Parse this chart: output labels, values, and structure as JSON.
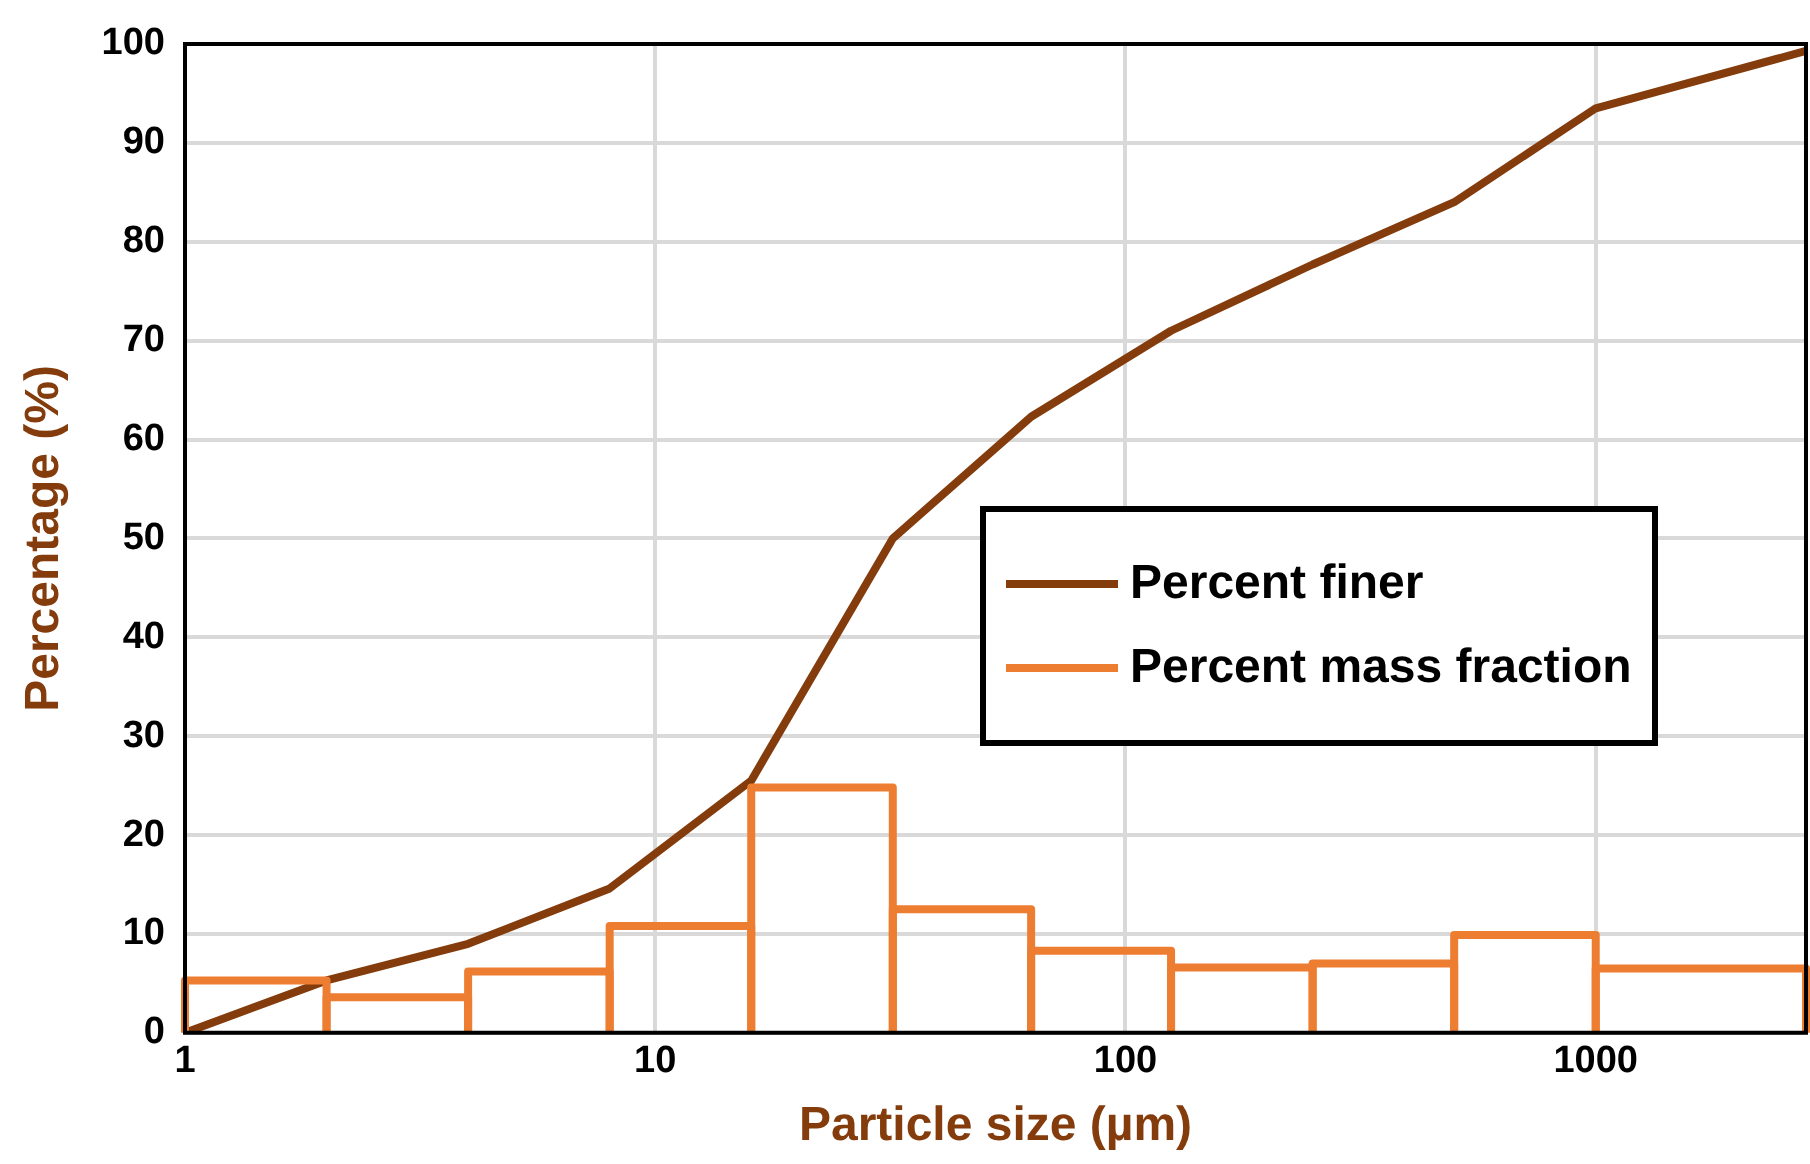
{
  "chart_data": {
    "type": "histogram",
    "xlabel": "Particle size (µm)",
    "ylabel": "Percentage (%)",
    "log": "x",
    "xlim": [
      1,
      2800
    ],
    "xticks": [
      1,
      10,
      100,
      1000
    ],
    "ylim": [
      0,
      100
    ],
    "yticks": [
      0,
      10,
      20,
      30,
      40,
      50,
      60,
      70,
      80,
      90,
      100
    ],
    "grid": true,
    "legend": "right",
    "bins": [
      1,
      2,
      4,
      8,
      16,
      32,
      63,
      125,
      250,
      500,
      1000,
      2800
    ],
    "series": [
      {
        "name": "Percent finer",
        "type": "line",
        "color": "#843c0c",
        "x": [
          1,
          2,
          4,
          8,
          16,
          32,
          63,
          125,
          250,
          500,
          1000,
          2800
        ],
        "values": [
          0,
          5.3,
          9,
          14.6,
          25.5,
          50,
          62.3,
          71,
          77.7,
          84,
          93.5,
          99.3
        ]
      },
      {
        "name": "Percent mass fraction",
        "color": "#ed7d31",
        "values": [
          5.3,
          3.6,
          6.2,
          10.8,
          24.8,
          12.5,
          8.3,
          6.6,
          7.0,
          9.9,
          6.5
        ]
      }
    ]
  }
}
